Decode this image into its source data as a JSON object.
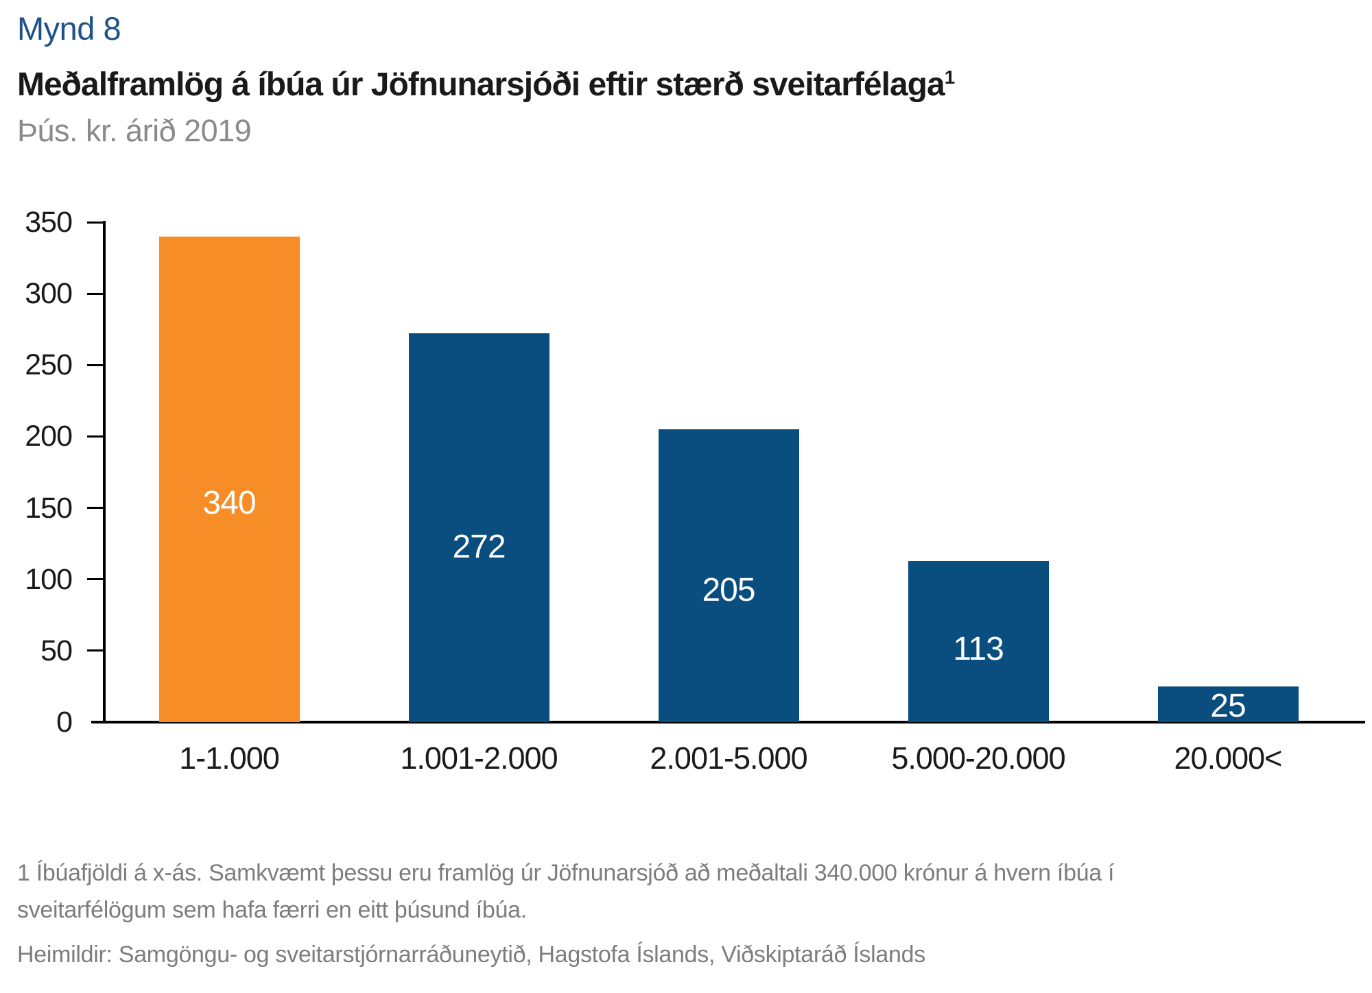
{
  "figure": {
    "label": "Mynd 8",
    "title": "Meðalframlög á íbúa úr Jöfnunarsjóði eftir stærð sveitarfélaga",
    "title_superscript": "1",
    "subtitle": "Þús. kr. árið 2019"
  },
  "chart_data": {
    "type": "bar",
    "title": "Meðalframlög á íbúa úr Jöfnunarsjóði eftir stærð sveitarfélaga",
    "subtitle": "Þús. kr. árið 2019",
    "unit": "Þús. kr.",
    "categories": [
      "1-1.000",
      "1.001-2.000",
      "2.001-5.000",
      "5.000-20.000",
      "20.000<"
    ],
    "values": [
      340,
      272,
      205,
      113,
      25
    ],
    "bar_labels": [
      "340",
      "272",
      "205",
      "113",
      "25"
    ],
    "xlabel": "",
    "ylabel": "",
    "ylim": [
      0,
      350
    ],
    "yticks": [
      0,
      50,
      100,
      150,
      200,
      250,
      300,
      350
    ],
    "grid": false,
    "legend": false,
    "bar_colors": [
      "#f78d26",
      "#0a4d7f",
      "#0a4d7f",
      "#0a4d7f",
      "#0a4d7f"
    ],
    "highlight_color": "#f78d26",
    "base_color": "#0a4d7f",
    "value_label_color": "#ffffff",
    "axis_color": "#000000"
  },
  "footnote": "1 Íbúafjöldi á x-ás. Samkvæmt þessu eru framlög úr Jöfnunarsjóð að meðaltali 340.000 krónur á hvern íbúa í sveitarfélögum sem hafa færri en eitt þúsund íbúa.",
  "sources": "Heimildir: Samgöngu- og sveitarstjórnarráðuneytið, Hagstofa Íslands, Viðskiptaráð Íslands"
}
